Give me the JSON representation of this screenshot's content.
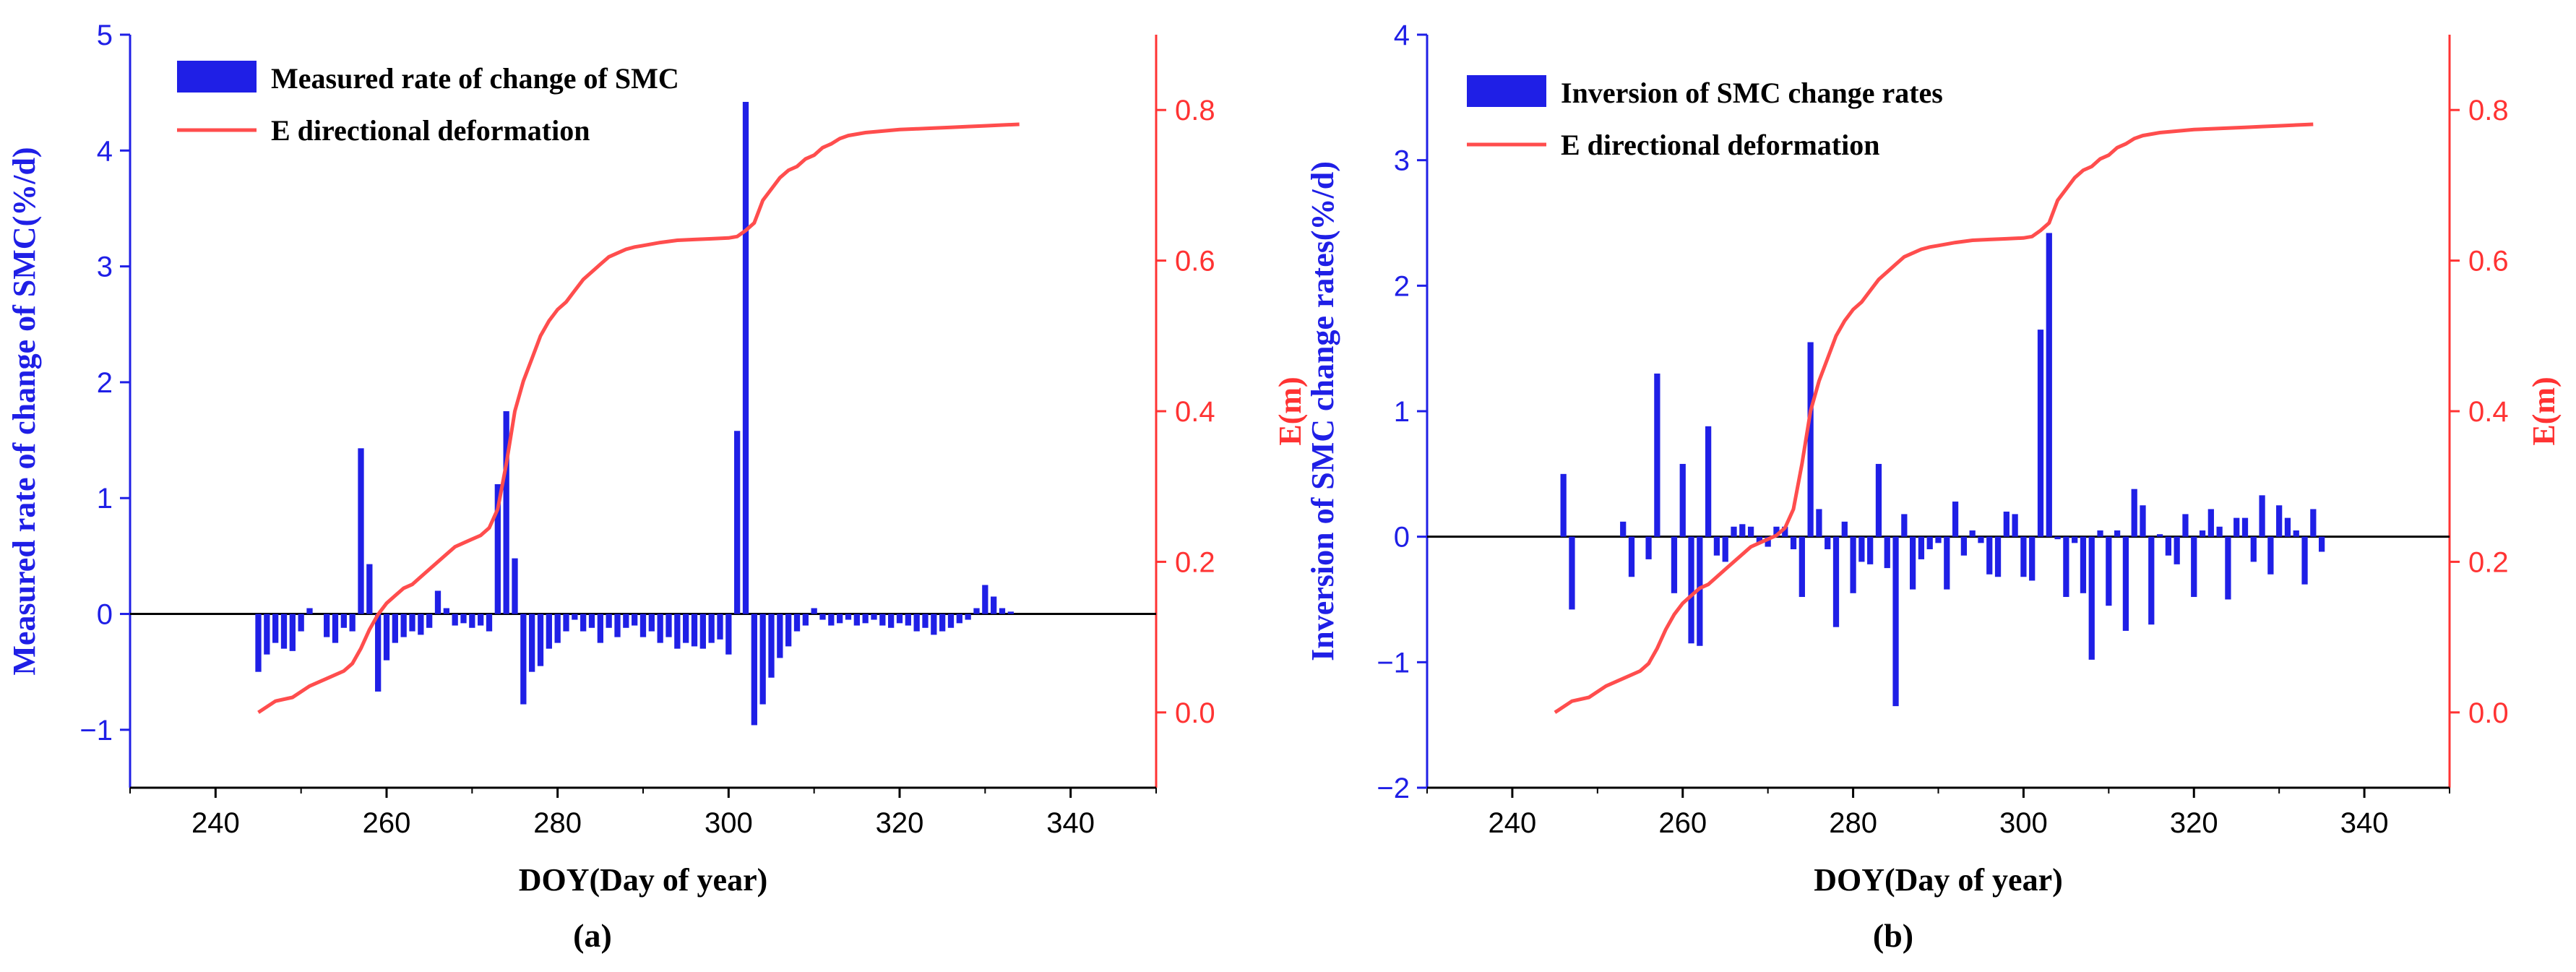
{
  "colors": {
    "bar": "#1f1fe6",
    "line": "#ff4d4d",
    "left_axis": "#1f1fe6",
    "right_axis": "#ff3333",
    "x_axis": "#000000"
  },
  "chart_data": [
    {
      "type": "bar+line",
      "panel_label": "(a)",
      "xlabel": "DOY(Day of year)",
      "xlim": [
        230,
        350
      ],
      "xticks": [
        240,
        260,
        280,
        300,
        320,
        340
      ],
      "ylabel": "Measured rate of change of SMC(%/d)",
      "ylim": [
        -1.5,
        5
      ],
      "yticks": [
        -1,
        0,
        1,
        2,
        3,
        4,
        5
      ],
      "y2label": "E(m)",
      "y2lim": [
        -0.1,
        0.9
      ],
      "y2ticks": [
        0.0,
        0.2,
        0.4,
        0.6,
        0.8
      ],
      "legend": [
        "Measured rate of change of SMC",
        "E directional deformation"
      ],
      "bars": {
        "name": "Measured rate of change of SMC",
        "x": [
          245,
          246,
          247,
          248,
          249,
          250,
          251,
          252,
          253,
          254,
          255,
          256,
          257,
          258,
          259,
          260,
          261,
          262,
          263,
          264,
          265,
          266,
          267,
          268,
          269,
          270,
          271,
          272,
          273,
          274,
          275,
          276,
          277,
          278,
          279,
          280,
          281,
          282,
          283,
          284,
          285,
          286,
          287,
          288,
          289,
          290,
          291,
          292,
          293,
          294,
          295,
          296,
          297,
          298,
          299,
          300,
          301,
          302,
          303,
          304,
          305,
          306,
          307,
          308,
          309,
          310,
          311,
          312,
          313,
          314,
          315,
          316,
          317,
          318,
          319,
          320,
          321,
          322,
          323,
          324,
          325,
          326,
          327,
          328,
          329,
          330,
          331,
          332,
          333
        ],
        "y": [
          -0.5,
          -0.35,
          -0.25,
          -0.3,
          -0.32,
          -0.15,
          0.05,
          0,
          -0.2,
          -0.25,
          -0.12,
          -0.15,
          1.43,
          0.43,
          -0.67,
          -0.4,
          -0.25,
          -0.2,
          -0.15,
          -0.18,
          -0.12,
          0.2,
          0.05,
          -0.1,
          -0.08,
          -0.12,
          -0.1,
          -0.15,
          1.12,
          1.75,
          0.48,
          -0.78,
          -0.5,
          -0.45,
          -0.3,
          -0.25,
          -0.15,
          -0.05,
          -0.15,
          -0.12,
          -0.25,
          -0.12,
          -0.2,
          -0.12,
          -0.1,
          -0.2,
          -0.15,
          -0.25,
          -0.2,
          -0.3,
          -0.25,
          -0.28,
          -0.3,
          -0.25,
          -0.22,
          -0.35,
          1.58,
          4.42,
          -0.96,
          -0.78,
          -0.55,
          -0.38,
          -0.28,
          -0.15,
          -0.1,
          0.05,
          -0.05,
          -0.1,
          -0.08,
          -0.05,
          -0.1,
          -0.08,
          -0.05,
          -0.1,
          -0.12,
          -0.08,
          -0.1,
          -0.15,
          -0.12,
          -0.18,
          -0.15,
          -0.12,
          -0.08,
          -0.05,
          0.05,
          0.25,
          0.15,
          0.05,
          0.02
        ]
      },
      "line": {
        "name": "E directional deformation",
        "x": [
          245,
          247,
          249,
          251,
          253,
          255,
          256,
          257,
          258,
          259,
          260,
          261,
          262,
          263,
          264,
          265,
          266,
          267,
          268,
          269,
          270,
          271,
          272,
          273,
          274,
          275,
          276,
          277,
          278,
          279,
          280,
          281,
          282,
          283,
          284,
          285,
          286,
          287,
          288,
          289,
          290,
          292,
          294,
          296,
          298,
          300,
          301,
          302,
          303,
          304,
          305,
          306,
          307,
          308,
          309,
          310,
          311,
          312,
          313,
          314,
          316,
          318,
          320,
          322,
          324,
          326,
          328,
          330,
          332,
          334
        ],
        "y": [
          0.0,
          0.015,
          0.02,
          0.035,
          0.045,
          0.055,
          0.065,
          0.085,
          0.11,
          0.13,
          0.145,
          0.155,
          0.165,
          0.17,
          0.18,
          0.19,
          0.2,
          0.21,
          0.22,
          0.225,
          0.23,
          0.235,
          0.245,
          0.27,
          0.33,
          0.4,
          0.44,
          0.47,
          0.5,
          0.52,
          0.535,
          0.545,
          0.56,
          0.575,
          0.585,
          0.595,
          0.605,
          0.61,
          0.615,
          0.618,
          0.62,
          0.624,
          0.627,
          0.628,
          0.629,
          0.63,
          0.632,
          0.64,
          0.65,
          0.68,
          0.695,
          0.71,
          0.72,
          0.725,
          0.735,
          0.74,
          0.75,
          0.755,
          0.762,
          0.766,
          0.77,
          0.772,
          0.774,
          0.775,
          0.776,
          0.777,
          0.778,
          0.779,
          0.78,
          0.781
        ]
      }
    },
    {
      "type": "bar+line",
      "panel_label": "(b)",
      "xlabel": "DOY(Day of year)",
      "xlim": [
        230,
        350
      ],
      "xticks": [
        240,
        260,
        280,
        300,
        320,
        340
      ],
      "ylabel": "Inversion of SMC change rates(%/d)",
      "ylim": [
        -2,
        4
      ],
      "yticks": [
        -2,
        -1,
        0,
        1,
        2,
        3,
        4
      ],
      "y2label": "E(m)",
      "y2lim": [
        -0.1,
        0.9
      ],
      "y2ticks": [
        0.0,
        0.2,
        0.4,
        0.6,
        0.8
      ],
      "legend": [
        "Inversion of SMC change rates",
        "E directional deformation"
      ],
      "bars": {
        "name": "Inversion of SMC change rates",
        "x": [
          246,
          247,
          253,
          254,
          256,
          257,
          259,
          260,
          261,
          262,
          263,
          264,
          265,
          266,
          267,
          268,
          269,
          270,
          271,
          272,
          273,
          274,
          275,
          276,
          277,
          278,
          279,
          280,
          281,
          282,
          283,
          284,
          285,
          286,
          287,
          288,
          289,
          290,
          291,
          292,
          293,
          294,
          295,
          296,
          297,
          298,
          299,
          300,
          301,
          302,
          303,
          304,
          305,
          306,
          307,
          308,
          309,
          310,
          311,
          312,
          313,
          314,
          315,
          316,
          317,
          318,
          319,
          320,
          321,
          322,
          323,
          324,
          325,
          326,
          327,
          328,
          329,
          330,
          331,
          332,
          333,
          334,
          335
        ],
        "y": [
          0.5,
          -0.58,
          0.12,
          -0.32,
          -0.18,
          1.3,
          -0.45,
          0.58,
          -0.85,
          -0.87,
          0.88,
          -0.15,
          -0.2,
          0.08,
          0.1,
          0.08,
          -0.05,
          -0.08,
          0.08,
          0.08,
          -0.1,
          -0.48,
          1.55,
          0.22,
          -0.1,
          -0.72,
          0.12,
          -0.45,
          -0.2,
          -0.22,
          0.58,
          -0.25,
          -1.35,
          0.18,
          -0.42,
          -0.18,
          -0.1,
          -0.05,
          -0.42,
          0.28,
          -0.15,
          0.05,
          -0.05,
          -0.3,
          -0.32,
          0.2,
          0.18,
          -0.32,
          -0.35,
          1.65,
          2.42,
          -0.02,
          -0.48,
          -0.05,
          -0.45,
          -0.98,
          0.05,
          -0.55,
          0.05,
          -0.75,
          0.38,
          0.25,
          -0.7,
          0.02,
          -0.15,
          -0.22,
          0.18,
          -0.48,
          0.05,
          0.22,
          0.08,
          -0.5,
          0.15,
          0.15,
          -0.2,
          0.33,
          -0.3,
          0.25,
          0.15,
          0.05,
          -0.38,
          0.22,
          -0.12
        ]
      },
      "line": {
        "name": "E directional deformation",
        "x": [
          245,
          247,
          249,
          251,
          253,
          255,
          256,
          257,
          258,
          259,
          260,
          261,
          262,
          263,
          264,
          265,
          266,
          267,
          268,
          269,
          270,
          271,
          272,
          273,
          274,
          275,
          276,
          277,
          278,
          279,
          280,
          281,
          282,
          283,
          284,
          285,
          286,
          287,
          288,
          289,
          290,
          292,
          294,
          296,
          298,
          300,
          301,
          302,
          303,
          304,
          305,
          306,
          307,
          308,
          309,
          310,
          311,
          312,
          313,
          314,
          316,
          318,
          320,
          322,
          324,
          326,
          328,
          330,
          332,
          334
        ],
        "y": [
          0.0,
          0.015,
          0.02,
          0.035,
          0.045,
          0.055,
          0.065,
          0.085,
          0.11,
          0.13,
          0.145,
          0.155,
          0.165,
          0.17,
          0.18,
          0.19,
          0.2,
          0.21,
          0.22,
          0.225,
          0.23,
          0.235,
          0.245,
          0.27,
          0.33,
          0.4,
          0.44,
          0.47,
          0.5,
          0.52,
          0.535,
          0.545,
          0.56,
          0.575,
          0.585,
          0.595,
          0.605,
          0.61,
          0.615,
          0.618,
          0.62,
          0.624,
          0.627,
          0.628,
          0.629,
          0.63,
          0.632,
          0.64,
          0.65,
          0.68,
          0.695,
          0.71,
          0.72,
          0.725,
          0.735,
          0.74,
          0.75,
          0.755,
          0.762,
          0.766,
          0.77,
          0.772,
          0.774,
          0.775,
          0.776,
          0.777,
          0.778,
          0.779,
          0.78,
          0.781
        ]
      }
    }
  ]
}
